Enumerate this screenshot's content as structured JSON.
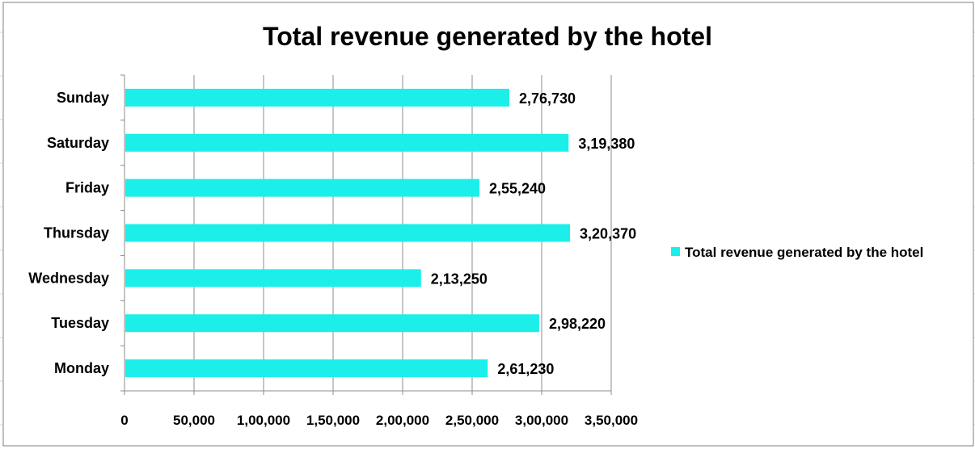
{
  "chart_data": {
    "type": "bar",
    "orientation": "horizontal",
    "title": "Total revenue generated by the hotel",
    "categories": [
      "Monday",
      "Tuesday",
      "Wednesday",
      "Thursday",
      "Friday",
      "Saturday",
      "Sunday"
    ],
    "series": [
      {
        "name": "Total revenue generated by the hotel",
        "values": [
          261230,
          298220,
          213250,
          320370,
          255240,
          319380,
          276730
        ],
        "data_labels": [
          "2,61,230",
          "2,98,220",
          "2,13,250",
          "3,20,370",
          "2,55,240",
          "3,19,380",
          "2,76,730"
        ],
        "color": "#1CEFEA"
      }
    ],
    "xlim": [
      0,
      350000
    ],
    "x_ticks": [
      0,
      50000,
      100000,
      150000,
      200000,
      250000,
      300000,
      350000
    ],
    "x_tick_labels": [
      "0",
      "50,000",
      "1,00,000",
      "1,50,000",
      "2,00,000",
      "2,50,000",
      "3,00,000",
      "3,50,000"
    ],
    "xlabel": "",
    "ylabel": "",
    "grid": "vertical",
    "legend_position": "right"
  },
  "colors": {
    "bar": "#1CEFEA",
    "grid": "#8c8c8c",
    "frame": "#7f7f7f",
    "sheet_grid": "#d9d9d9"
  }
}
